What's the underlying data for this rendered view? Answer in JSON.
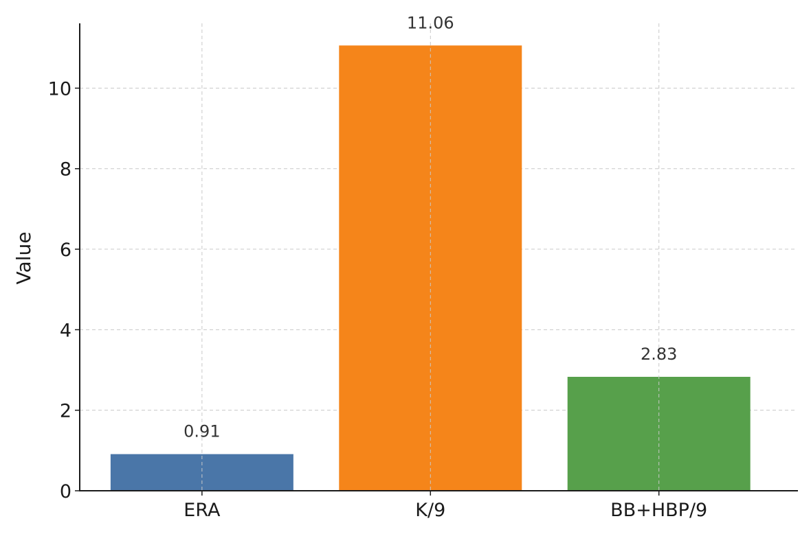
{
  "chart_data": {
    "type": "bar",
    "title": "",
    "xlabel": "",
    "ylabel": "Value",
    "categories": [
      "ERA",
      "K/9",
      "BB+HBP/9"
    ],
    "values": [
      0.91,
      11.06,
      2.83
    ],
    "value_labels": [
      "0.91",
      "11.06",
      "2.83"
    ],
    "colors": [
      "#4a76a8",
      "#f5851a",
      "#57a04b"
    ],
    "ylim": [
      0,
      11.61
    ],
    "yticks": [
      0,
      2,
      4,
      6,
      8,
      10
    ],
    "grid": true,
    "legend": "none"
  }
}
